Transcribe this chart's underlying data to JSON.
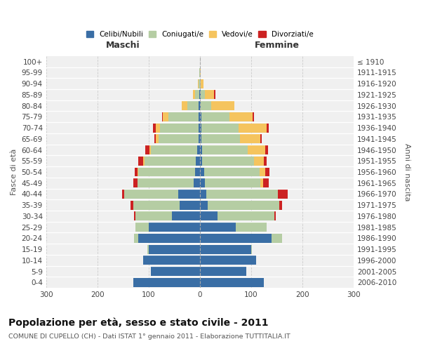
{
  "age_groups": [
    "0-4",
    "5-9",
    "10-14",
    "15-19",
    "20-24",
    "25-29",
    "30-34",
    "35-39",
    "40-44",
    "45-49",
    "50-54",
    "55-59",
    "60-64",
    "65-69",
    "70-74",
    "75-79",
    "80-84",
    "85-89",
    "90-94",
    "95-99",
    "100+"
  ],
  "birth_years": [
    "2006-2010",
    "2001-2005",
    "1996-2000",
    "1991-1995",
    "1986-1990",
    "1981-1985",
    "1976-1980",
    "1971-1975",
    "1966-1970",
    "1961-1965",
    "1956-1960",
    "1951-1955",
    "1946-1950",
    "1941-1945",
    "1936-1940",
    "1931-1935",
    "1926-1930",
    "1921-1925",
    "1916-1920",
    "1911-1915",
    "≤ 1910"
  ],
  "maschi": {
    "celibi": [
      130,
      95,
      110,
      100,
      120,
      100,
      55,
      40,
      42,
      12,
      10,
      8,
      5,
      3,
      3,
      2,
      2,
      1,
      0,
      0,
      0
    ],
    "coniugati": [
      0,
      0,
      0,
      2,
      8,
      25,
      70,
      90,
      105,
      110,
      110,
      100,
      90,
      78,
      75,
      60,
      22,
      8,
      2,
      1,
      0
    ],
    "vedovi": [
      0,
      0,
      0,
      0,
      0,
      0,
      0,
      0,
      0,
      0,
      2,
      2,
      3,
      5,
      8,
      10,
      12,
      5,
      2,
      0,
      0
    ],
    "divorziati": [
      0,
      0,
      0,
      0,
      0,
      0,
      3,
      5,
      5,
      8,
      5,
      10,
      8,
      3,
      5,
      2,
      0,
      0,
      0,
      0,
      0
    ]
  },
  "femmine": {
    "nubili": [
      125,
      90,
      110,
      100,
      140,
      70,
      35,
      15,
      12,
      10,
      8,
      5,
      5,
      3,
      3,
      3,
      2,
      2,
      0,
      0,
      0
    ],
    "coniugate": [
      0,
      0,
      0,
      2,
      20,
      60,
      110,
      140,
      140,
      108,
      108,
      100,
      88,
      75,
      72,
      55,
      20,
      8,
      2,
      0,
      0
    ],
    "vedove": [
      0,
      0,
      0,
      0,
      0,
      0,
      0,
      0,
      0,
      5,
      12,
      20,
      35,
      40,
      55,
      45,
      45,
      18,
      5,
      2,
      0
    ],
    "divorziate": [
      0,
      0,
      0,
      0,
      0,
      0,
      3,
      5,
      20,
      12,
      8,
      5,
      5,
      3,
      5,
      2,
      0,
      2,
      0,
      0,
      0
    ]
  },
  "colors": {
    "celibi": "#3a6ea5",
    "coniugati": "#b5cda3",
    "vedovi": "#f5c45e",
    "divorziati": "#cc2222"
  },
  "xlim": 300,
  "title": "Popolazione per età, sesso e stato civile - 2011",
  "subtitle": "COMUNE DI CUPELLO (CH) - Dati ISTAT 1° gennaio 2011 - Elaborazione TUTTITALIA.IT",
  "xlabel_left": "Maschi",
  "xlabel_right": "Femmine",
  "ylabel_left": "Fasce di età",
  "ylabel_right": "Anni di nascita",
  "bg_color": "#ffffff",
  "plot_bg": "#f0f0f0",
  "grid_color": "#cccccc"
}
